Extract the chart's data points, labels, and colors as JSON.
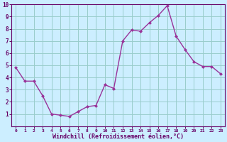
{
  "x": [
    0,
    1,
    2,
    3,
    4,
    5,
    6,
    7,
    8,
    9,
    10,
    11,
    12,
    13,
    14,
    15,
    16,
    17,
    18,
    19,
    20,
    21,
    22,
    23
  ],
  "y": [
    4.8,
    3.7,
    3.7,
    2.5,
    1.0,
    0.9,
    0.8,
    1.2,
    1.6,
    1.7,
    3.4,
    3.1,
    7.0,
    7.9,
    7.8,
    8.5,
    9.1,
    9.9,
    7.4,
    6.3,
    5.3,
    4.9,
    4.9,
    4.3
  ],
  "xlim": [
    -0.5,
    23.5
  ],
  "ylim": [
    0,
    10
  ],
  "yticks": [
    1,
    2,
    3,
    4,
    5,
    6,
    7,
    8,
    9,
    10
  ],
  "xticks": [
    0,
    1,
    2,
    3,
    4,
    5,
    6,
    7,
    8,
    9,
    10,
    11,
    12,
    13,
    14,
    15,
    16,
    17,
    18,
    19,
    20,
    21,
    22,
    23
  ],
  "xlabel": "Windchill (Refroidissement éolien,°C)",
  "line_color": "#993399",
  "marker_color": "#993399",
  "bg_color": "#cceeff",
  "grid_color": "#99cccc",
  "label_color": "#660066",
  "tick_color": "#660066",
  "xlabel_color": "#660066"
}
